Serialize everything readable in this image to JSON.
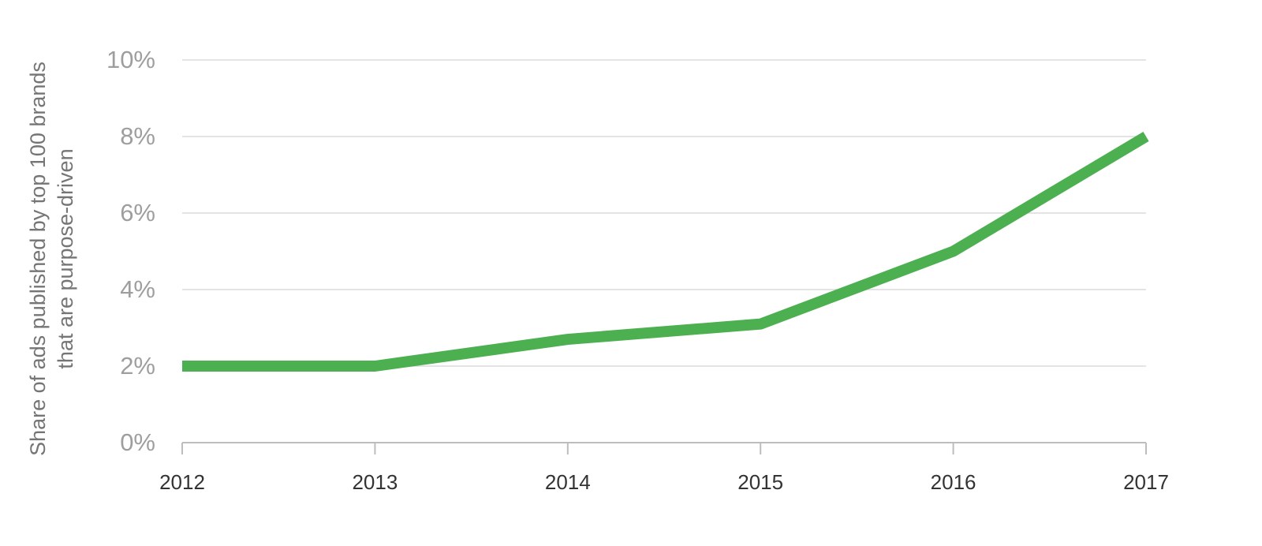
{
  "chart_data": {
    "type": "line",
    "y_label": [
      "Share of ads published by top 100 brands",
      "that are purpose-driven"
    ],
    "x": [
      2012,
      2013,
      2014,
      2015,
      2016,
      2017
    ],
    "series": [
      {
        "color": "#4caf50",
        "values": [
          2.0,
          2.0,
          2.7,
          3.1,
          5.0,
          8.0
        ]
      }
    ],
    "xlim": [
      2012,
      2017
    ],
    "xticks": [
      2012,
      2013,
      2014,
      2015,
      2016,
      2017
    ],
    "ylim": [
      0,
      10
    ],
    "yticks": [
      {
        "value": 0,
        "label": "0%"
      },
      {
        "value": 2,
        "label": "2%"
      },
      {
        "value": 4,
        "label": "4%"
      },
      {
        "value": 6,
        "label": "6%"
      },
      {
        "value": 8,
        "label": "8%"
      },
      {
        "value": 10,
        "label": "10%"
      }
    ],
    "grid": true
  }
}
